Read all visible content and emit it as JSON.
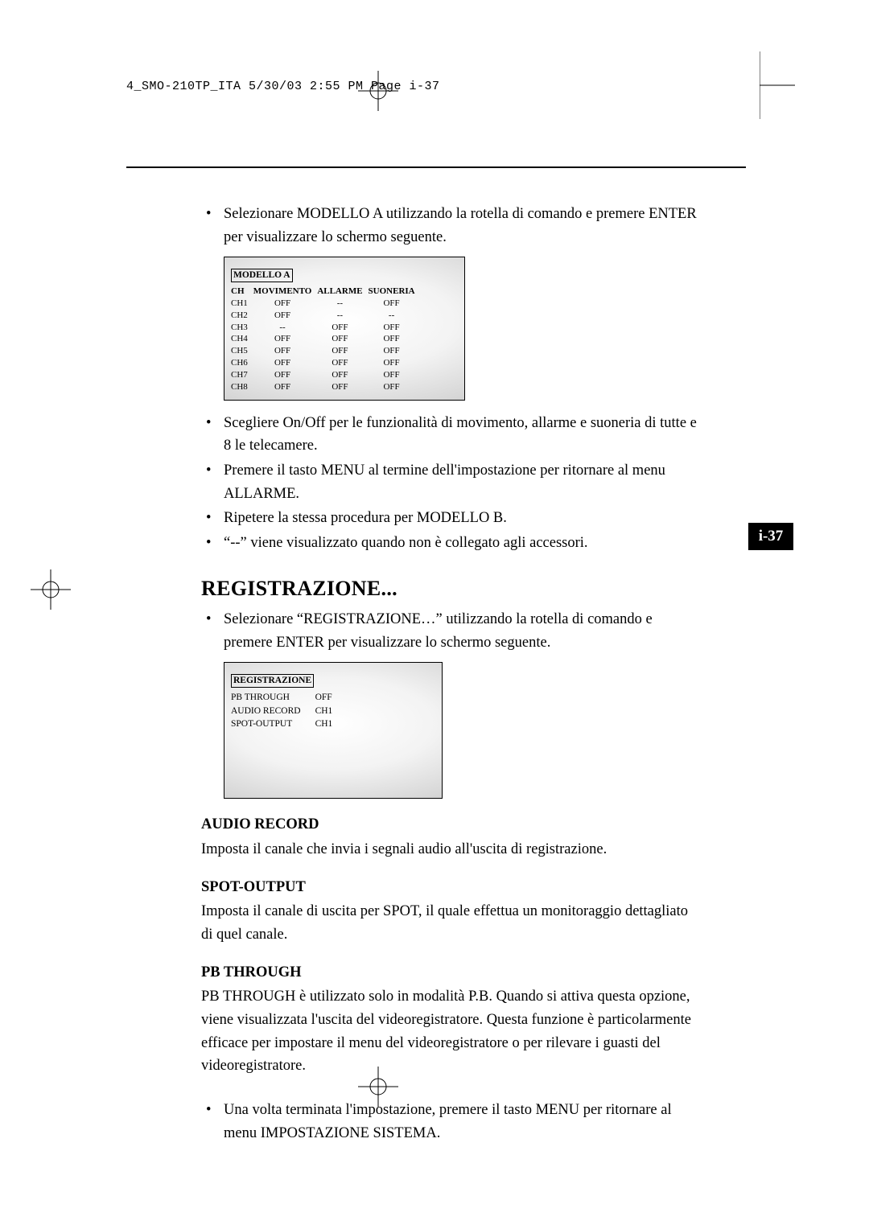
{
  "header": {
    "slug": "4_SMO-210TP_ITA  5/30/03  2:55 PM  Page i-37"
  },
  "pageTab": "i-37",
  "intro": {
    "bullets": [
      "Selezionare MODELLO A utilizzando la rotella di comando e premere ENTER per visualizzare lo schermo seguente."
    ]
  },
  "modelTable": {
    "title": "MODELLO A",
    "columns": [
      "CH",
      "MOVIMENTO",
      "ALLARME",
      "SUONERIA"
    ],
    "rows": [
      [
        "CH1",
        "OFF",
        "--",
        "OFF"
      ],
      [
        "CH2",
        "OFF",
        "--",
        "--"
      ],
      [
        "CH3",
        "--",
        "OFF",
        "OFF"
      ],
      [
        "CH4",
        "OFF",
        "OFF",
        "OFF"
      ],
      [
        "CH5",
        "OFF",
        "OFF",
        "OFF"
      ],
      [
        "CH6",
        "OFF",
        "OFF",
        "OFF"
      ],
      [
        "CH7",
        "OFF",
        "OFF",
        "OFF"
      ],
      [
        "CH8",
        "OFF",
        "OFF",
        "OFF"
      ]
    ]
  },
  "afterModel": {
    "bullets": [
      "Scegliere On/Off per le funzionalità di movimento, allarme e suoneria di tutte e 8 le telecamere.",
      "Premere il tasto MENU al termine dell'impostazione per ritornare al menu ALLARME.",
      "Ripetere la stessa procedura per MODELLO B.",
      "“--” viene visualizzato quando non è collegato agli accessori."
    ]
  },
  "registrazione": {
    "title": "REGISTRAZIONE...",
    "bullets": [
      "Selezionare “REGISTRAZIONE…” utilizzando la rotella di comando e premere ENTER per visualizzare lo schermo seguente."
    ]
  },
  "recTable": {
    "title": "REGISTRAZIONE",
    "rows": [
      [
        "PB THROUGH",
        "OFF"
      ],
      [
        "AUDIO RECORD",
        "CH1"
      ],
      [
        "SPOT-OUTPUT",
        "CH1"
      ]
    ]
  },
  "audioRecord": {
    "title": "AUDIO RECORD",
    "text": "Imposta il canale che invia i segnali audio all'uscita di registrazione."
  },
  "spotOutput": {
    "title": "SPOT-OUTPUT",
    "text": "Imposta il canale di uscita per SPOT, il quale effettua un monitoraggio dettagliato di quel canale."
  },
  "pbThrough": {
    "title": "PB THROUGH",
    "text": "PB THROUGH è utilizzato solo in modalità P.B. Quando si attiva questa opzione, viene visualizzata l'uscita del videoregistratore. Questa funzione è particolarmente efficace per impostare il menu del videoregistratore o per rilevare i guasti del videoregistratore."
  },
  "closing": {
    "bullets": [
      "Una volta terminata l'impostazione, premere il tasto MENU per ritornare al menu IMPOSTAZIONE SISTEMA."
    ]
  }
}
